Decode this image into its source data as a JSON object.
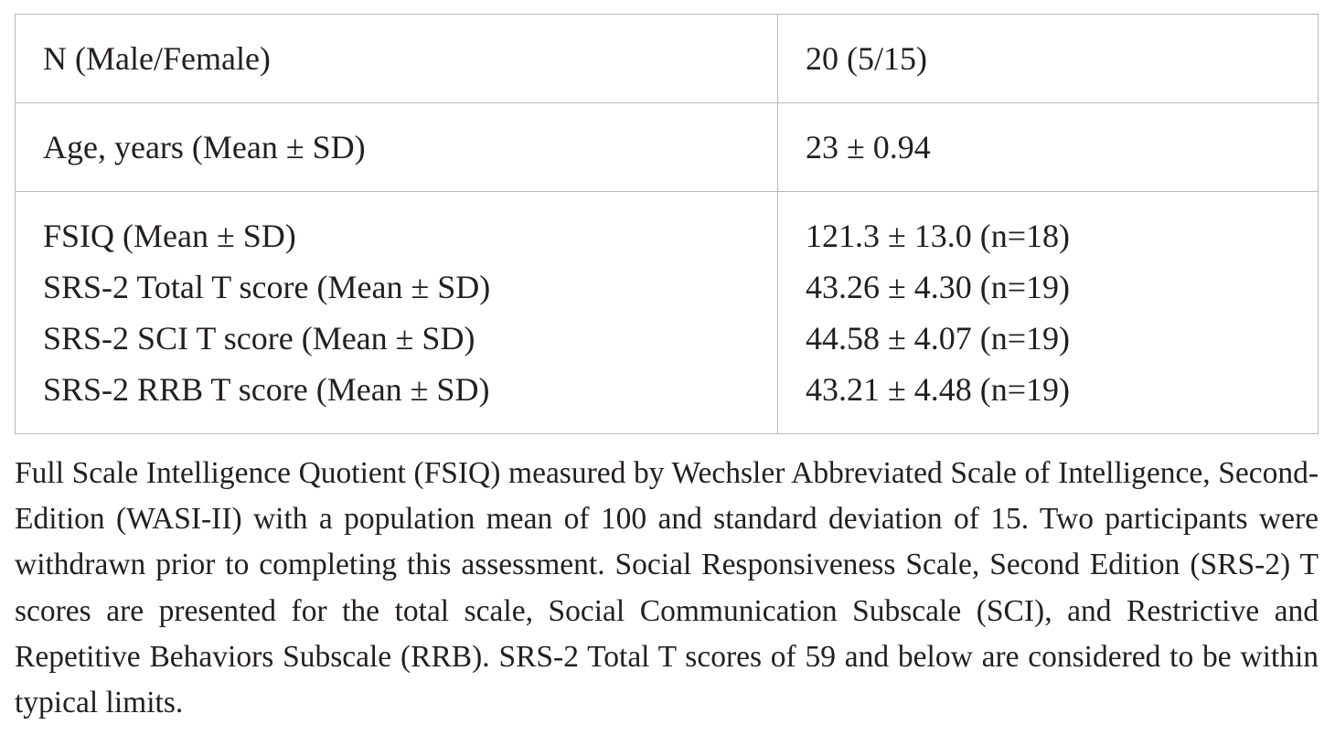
{
  "table": {
    "rows": [
      {
        "labels": [
          "N (Male/Female)"
        ],
        "values": [
          "20 (5/15)"
        ]
      },
      {
        "labels": [
          "Age, years (Mean ± SD)"
        ],
        "values": [
          "23 ± 0.94"
        ]
      },
      {
        "labels": [
          "FSIQ (Mean ± SD)",
          "SRS-2 Total T score (Mean ± SD)",
          "SRS-2 SCI T score (Mean ± SD)",
          "SRS-2 RRB T score (Mean ± SD)"
        ],
        "values": [
          "121.3 ± 13.0 (n=18)",
          "43.26 ± 4.30 (n=19)",
          "44.58 ± 4.07 (n=19)",
          "43.21 ± 4.48 (n=19)"
        ]
      }
    ]
  },
  "footnote": "Full Scale Intelligence Quotient (FSIQ) measured by Wechsler Abbreviated Scale of Intelligence, Second-Edition (WASI-II) with a population mean of 100 and standard deviation of 15. Two participants were withdrawn prior to completing this assessment. Social Responsiveness Scale, Second Edition (SRS-2) T scores are presented for the total scale, Social Communication Subscale (SCI), and Restrictive and Repetitive Behaviors Subscale (RRB). SRS-2 Total T scores of 59 and below are considered to be within typical limits."
}
